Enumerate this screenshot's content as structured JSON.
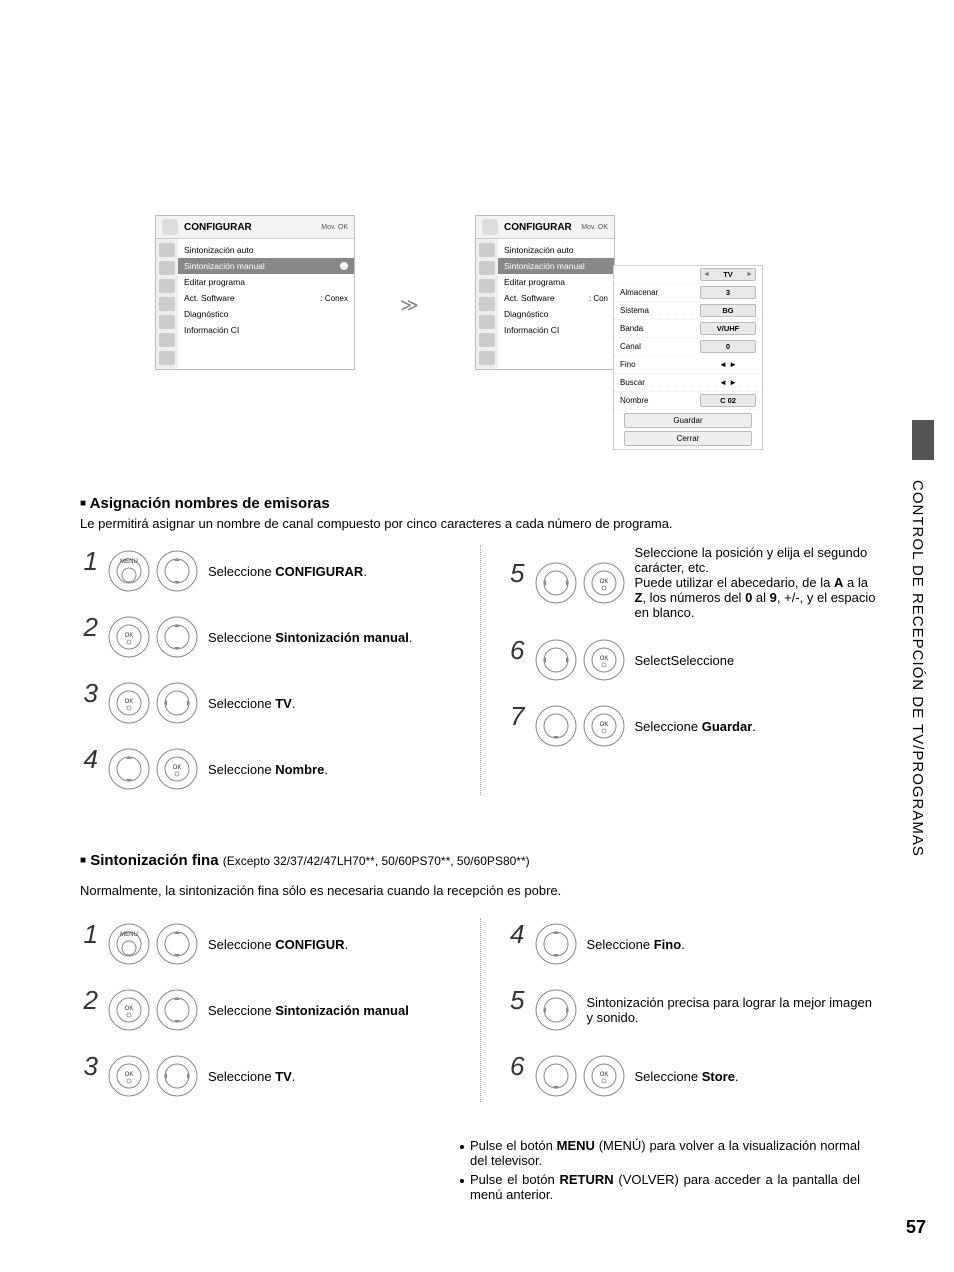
{
  "side_title": "CONTROL DE RECEPCIÓN DE TV/PROGRAMAS",
  "page": "57",
  "osd": {
    "title": "CONFIGURAR",
    "subtitle": "Mov.    OK",
    "items": [
      "Sintonización auto",
      "Sintonización manual",
      "Editar programa",
      "Act. Software",
      "Diagnóstico",
      "Información CI"
    ],
    "software_suffix": ": Conex",
    "software_suffix2": ": Con"
  },
  "panel": {
    "rows": [
      {
        "label": "",
        "val": "TV",
        "arrows": true
      },
      {
        "label": "Almacenar",
        "val": "3"
      },
      {
        "label": "Sistema",
        "val": "BG"
      },
      {
        "label": "Banda",
        "val": "V/UHF"
      },
      {
        "label": "Canal",
        "val": "0"
      },
      {
        "label": "Fino",
        "val": "◄ ►",
        "plain": true
      },
      {
        "label": "Buscar",
        "val": "◄ ►",
        "plain": true
      },
      {
        "label": "Nombre",
        "val": "C  02"
      }
    ],
    "btns": [
      "Guardar",
      "Cerrar"
    ]
  },
  "sec1": {
    "title": "Asignación nombres de emisoras",
    "desc": "Le permitirá asignar un nombre de canal compuesto por cinco caracteres a cada número de programa."
  },
  "sec2": {
    "title": "Sintonización fina",
    "excepto": "(Excepto 32/37/42/47LH70**, 50/60PS70**, 50/60PS80**)",
    "desc": "Normalmente, la sintonización fina sólo es necesaria cuando la recepción es pobre."
  },
  "labels": {
    "menu": "MENU",
    "ok": "OK"
  },
  "steps1_left": [
    {
      "n": "1",
      "text_pre": "Seleccione ",
      "bold": "CONFIGURAR",
      "text_post": "."
    },
    {
      "n": "2",
      "text_pre": "Seleccione ",
      "bold": "Sintonización manual",
      "text_post": "."
    },
    {
      "n": "3",
      "text_pre": "Seleccione ",
      "bold": "TV",
      "text_post": "."
    },
    {
      "n": "4",
      "text_pre": "Seleccione ",
      "bold": "Nombre",
      "text_post": "."
    }
  ],
  "steps1_right": [
    {
      "n": "5",
      "text_pre": "Seleccione la posición y elija el segundo carácter, etc.\nPuede utilizar el abecedario, de la ",
      "bold": "A",
      "mid": " a la ",
      "bold2": "Z",
      "mid2": ", los números del ",
      "bold3": "0",
      "mid3": " al ",
      "bold4": "9",
      "text_post": ", +/-, y el espacio en blanco."
    },
    {
      "n": "6",
      "text_pre": "SelectSeleccione",
      "bold": "",
      "text_post": ""
    },
    {
      "n": "7",
      "text_pre": "Seleccione ",
      "bold": "Guardar",
      "text_post": "."
    }
  ],
  "steps2_left": [
    {
      "n": "1",
      "text_pre": "Seleccione ",
      "bold": "CONFIGUR",
      "text_post": "."
    },
    {
      "n": "2",
      "text_pre": "Seleccione ",
      "bold": "Sintonización manual",
      "text_post": ""
    },
    {
      "n": "3",
      "text_pre": "Seleccione ",
      "bold": "TV",
      "text_post": "."
    }
  ],
  "steps2_right": [
    {
      "n": "4",
      "text_pre": "Seleccione ",
      "bold": "Fino",
      "text_post": "."
    },
    {
      "n": "5",
      "text_pre": "Sintonización precisa para lograr la mejor imagen y sonido.",
      "bold": "",
      "text_post": ""
    },
    {
      "n": "6",
      "text_pre": "Seleccione ",
      "bold": "Store",
      "text_post": "."
    }
  ],
  "bullets": [
    {
      "pre": "Pulse el botón ",
      "bold": "MENU",
      "post": " (MENÚ) para volver a la visualización normal del televisor."
    },
    {
      "pre": "Pulse el botón ",
      "bold": "RETURN",
      "post": " (VOLVER) para acceder a la pantalla del menú anterior."
    }
  ]
}
